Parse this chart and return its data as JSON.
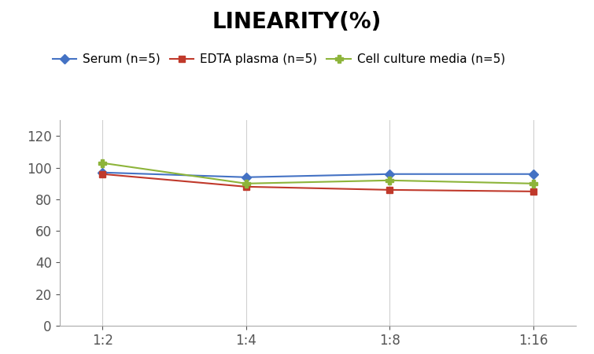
{
  "title": "LINEARITY(%)",
  "x_labels": [
    "1:2",
    "1:4",
    "1:8",
    "1:16"
  ],
  "x_positions": [
    0,
    1,
    2,
    3
  ],
  "series": [
    {
      "label": "Serum (n=5)",
      "values": [
        97,
        94,
        96,
        96
      ],
      "color": "#4472C4",
      "marker": "D",
      "marker_size": 6
    },
    {
      "label": "EDTA plasma (n=5)",
      "values": [
        96,
        88,
        86,
        85
      ],
      "color": "#C0392B",
      "marker": "s",
      "marker_size": 6
    },
    {
      "label": "Cell culture media (n=5)",
      "values": [
        103,
        90,
        92,
        90
      ],
      "color": "#8DB43A",
      "marker": "P",
      "marker_size": 7
    }
  ],
  "ylim": [
    0,
    130
  ],
  "yticks": [
    0,
    20,
    40,
    60,
    80,
    100,
    120
  ],
  "background_color": "#ffffff",
  "grid_color": "#d0d0d0",
  "title_fontsize": 20,
  "legend_fontsize": 11,
  "tick_fontsize": 12,
  "spine_color": "#aaaaaa"
}
